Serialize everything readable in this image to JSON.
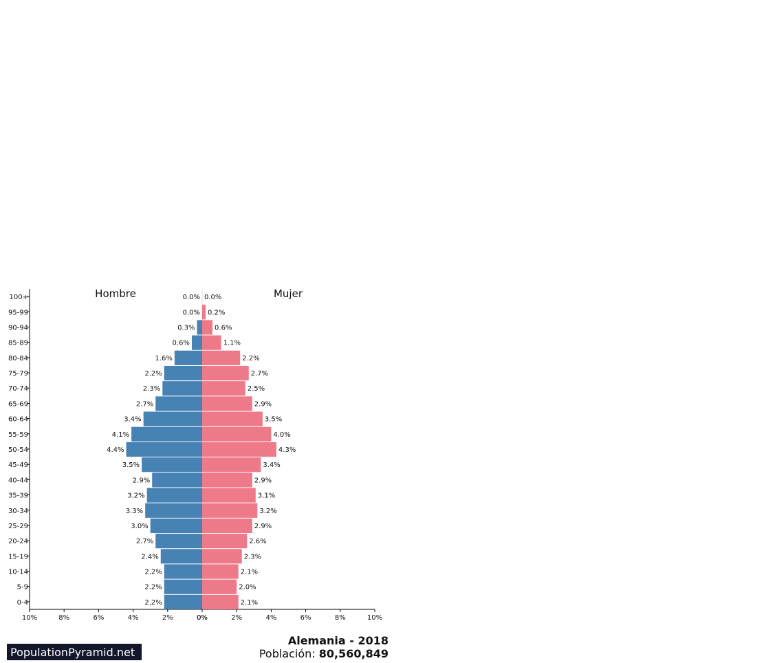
{
  "chart_data": {
    "type": "bar",
    "subtype": "population-pyramid",
    "categories": [
      "100+",
      "95-99",
      "90-94",
      "85-89",
      "80-84",
      "75-79",
      "70-74",
      "65-69",
      "60-64",
      "55-59",
      "50-54",
      "45-49",
      "40-44",
      "35-39",
      "30-34",
      "25-29",
      "20-24",
      "15-19",
      "10-14",
      "5-9",
      "0-4"
    ],
    "series": [
      {
        "name": "Hombre",
        "color": "#4682b4",
        "values": [
          0.0,
          0.0,
          0.3,
          0.6,
          1.6,
          2.2,
          2.3,
          2.7,
          3.4,
          4.1,
          4.4,
          3.5,
          2.9,
          3.2,
          3.3,
          3.0,
          2.7,
          2.4,
          2.2,
          2.2,
          2.2
        ],
        "labels": [
          "0.0%",
          "0.0%",
          "0.3%",
          "0.6%",
          "1.6%",
          "2.2%",
          "2.3%",
          "2.7%",
          "3.4%",
          "4.1%",
          "4.4%",
          "3.5%",
          "2.9%",
          "3.2%",
          "3.3%",
          "3.0%",
          "2.7%",
          "2.4%",
          "2.2%",
          "2.2%",
          "2.2%"
        ]
      },
      {
        "name": "Mujer",
        "color": "#ee7989",
        "values": [
          0.0,
          0.2,
          0.6,
          1.1,
          2.2,
          2.7,
          2.5,
          2.9,
          3.5,
          4.0,
          4.3,
          3.4,
          2.9,
          3.1,
          3.2,
          2.9,
          2.6,
          2.3,
          2.1,
          2.0,
          2.1
        ],
        "labels": [
          "0.0%",
          "0.2%",
          "0.6%",
          "1.1%",
          "2.2%",
          "2.7%",
          "2.5%",
          "2.9%",
          "3.5%",
          "4.0%",
          "4.3%",
          "3.4%",
          "2.9%",
          "3.1%",
          "3.2%",
          "2.9%",
          "2.6%",
          "2.3%",
          "2.1%",
          "2.0%",
          "2.1%"
        ]
      }
    ],
    "x_ticks_left": [
      "10%",
      "8%",
      "6%",
      "4%",
      "2%",
      "0%"
    ],
    "x_ticks_right": [
      "0%",
      "2%",
      "4%",
      "6%",
      "8%",
      "10%"
    ],
    "xlim": [
      0,
      10
    ],
    "grid": false
  },
  "footer": {
    "title": "Alemania - 2018",
    "population_label": "Población:",
    "population_value": "80,560,849"
  },
  "brand": "PopulationPyramid.net"
}
